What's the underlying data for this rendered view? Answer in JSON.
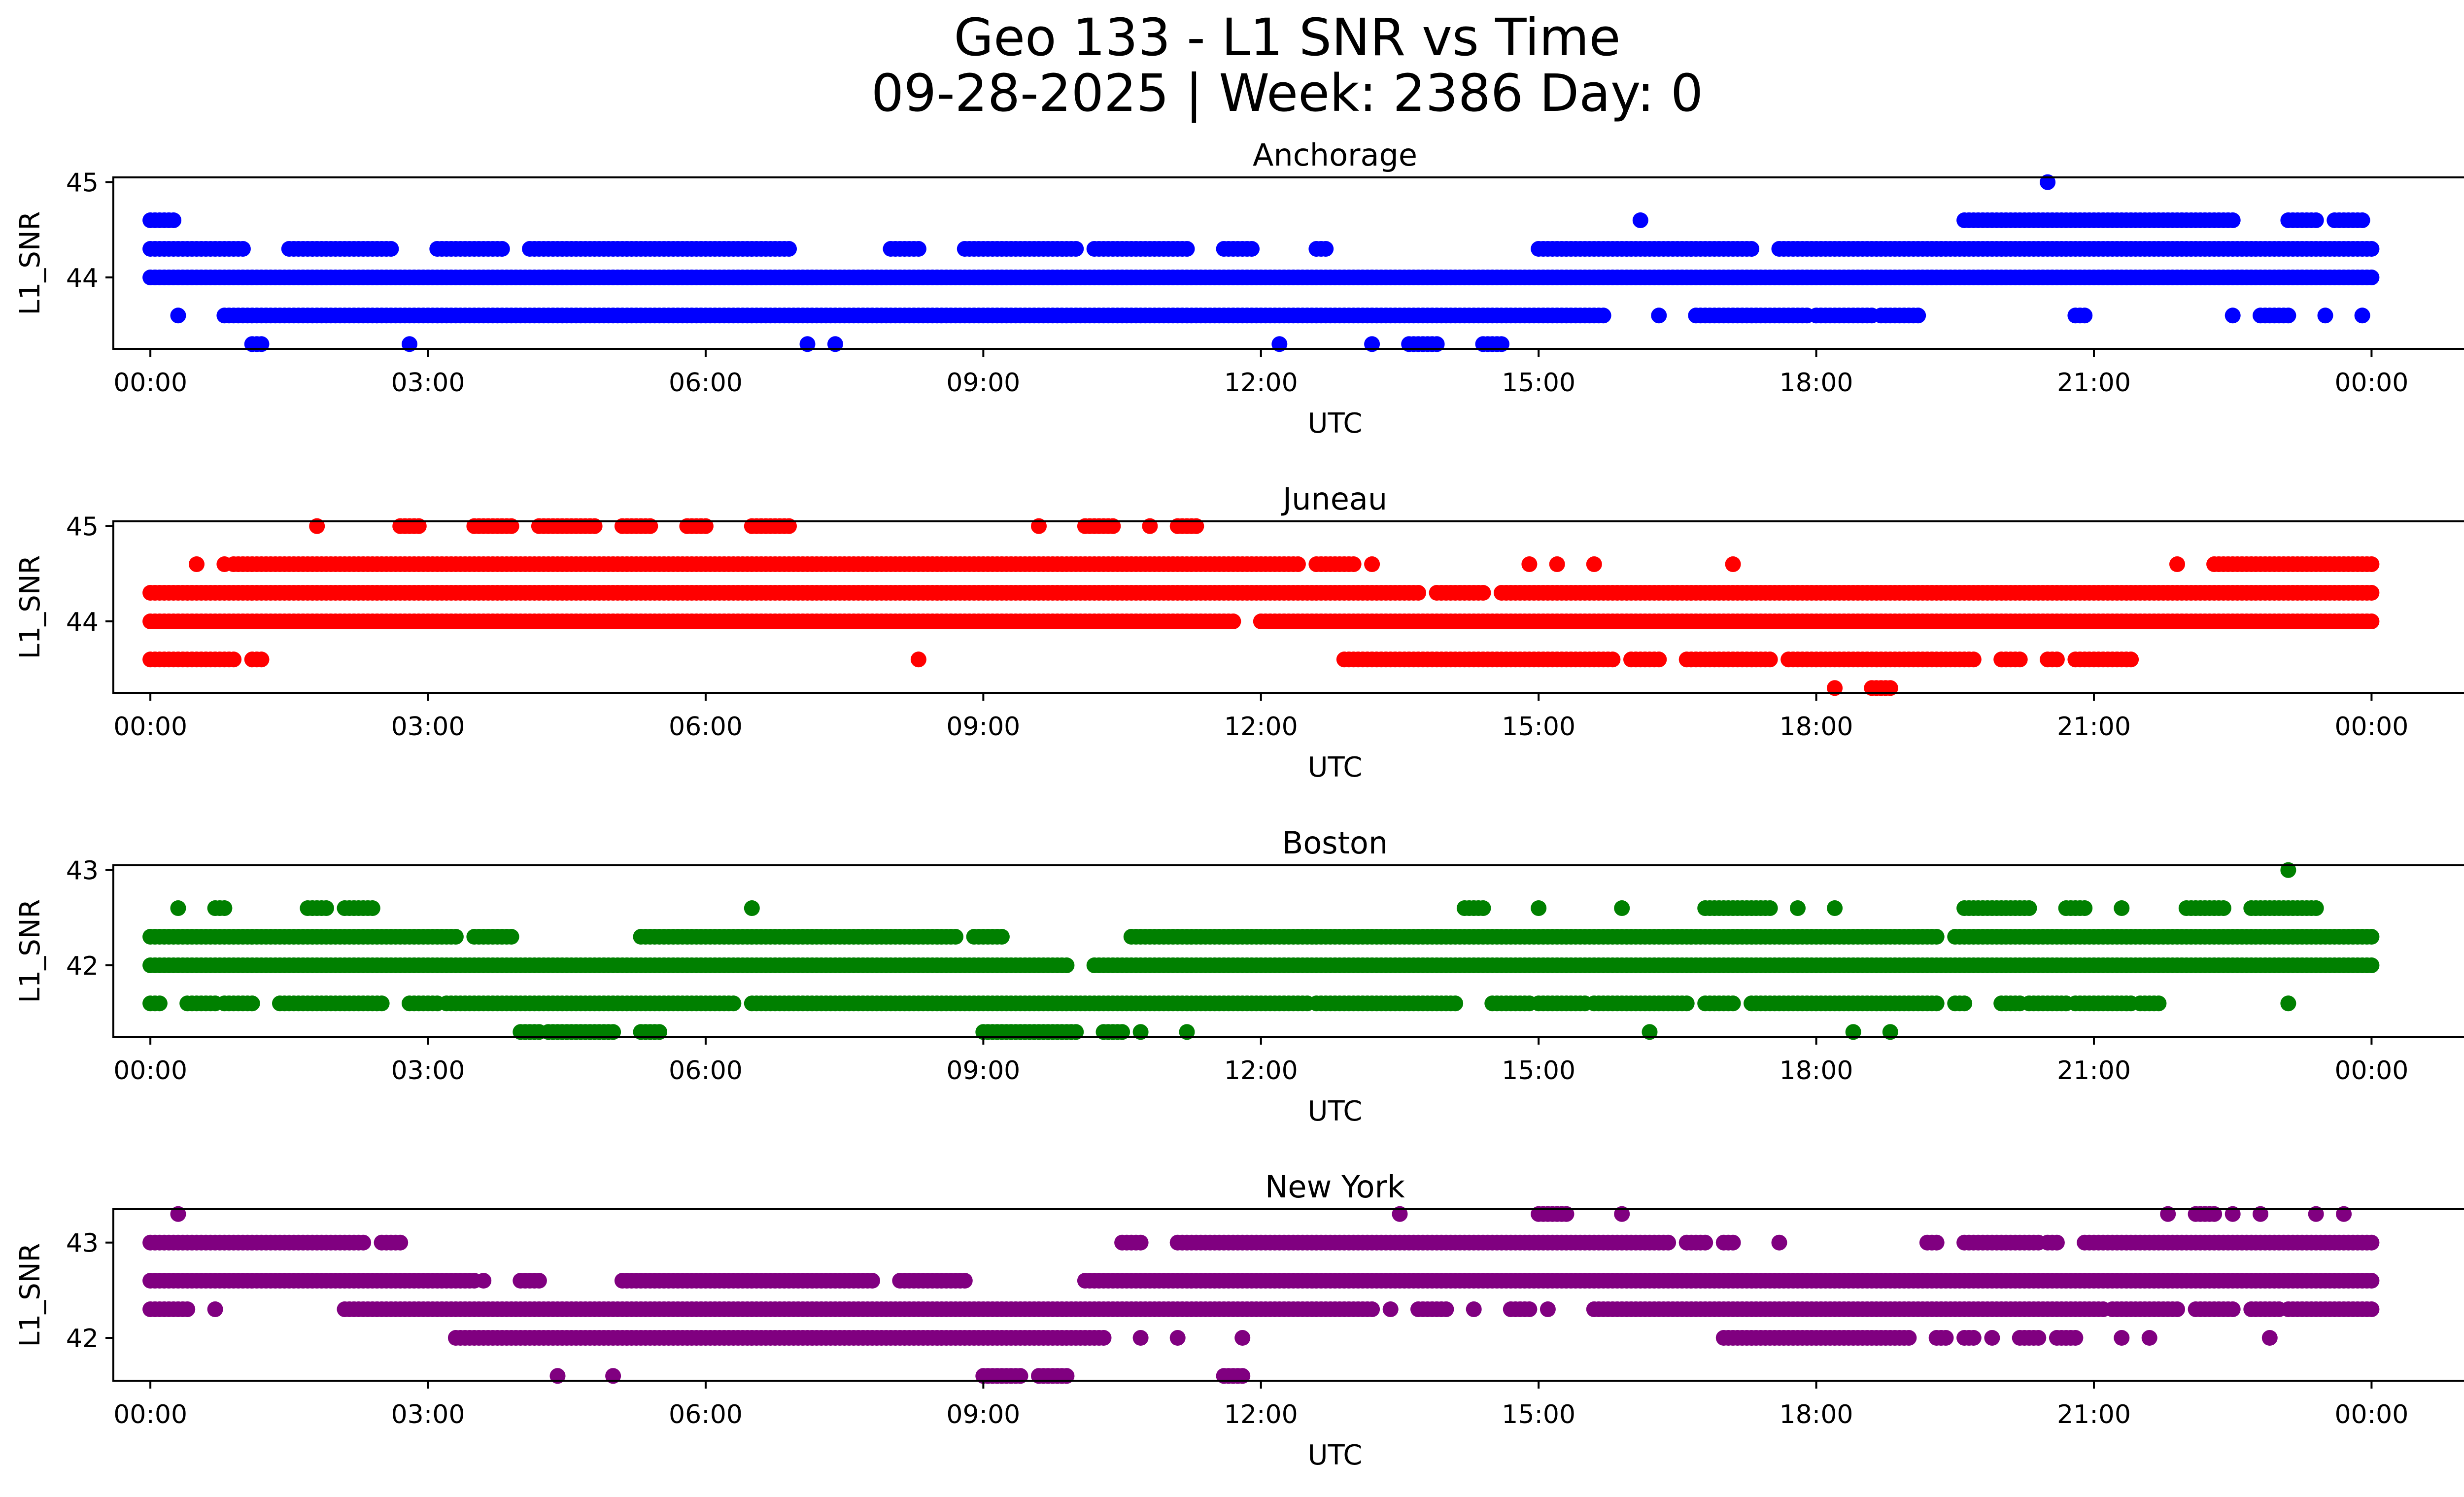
{
  "chart_data": {
    "type": "scatter",
    "title": "Geo 133 - L1 SNR vs Time",
    "subtitle": "09-28-2025 | Week: 2386 Day: 0",
    "xlabel": "UTC",
    "ylabel": "L1_SNR",
    "x_units": "hours UTC",
    "xlim": [
      -0.4,
      26.0
    ],
    "x_ticks": [
      0,
      3,
      6,
      9,
      12,
      15,
      18,
      21,
      24
    ],
    "x_tick_labels": [
      "00:00",
      "03:00",
      "06:00",
      "09:00",
      "12:00",
      "15:00",
      "18:00",
      "21:00",
      "00:00"
    ],
    "panels": [
      {
        "title": "Anchorage",
        "color": "#0000ff",
        "ylim": [
          43.25,
          45.05
        ],
        "y_ticks": [
          44,
          45
        ],
        "levels": [
          {
            "y": 44.0,
            "ranges": [
              [
                0.0,
                24.0
              ]
            ]
          },
          {
            "y": 44.3,
            "ranges": [
              [
                0.0,
                1.0
              ],
              [
                1.5,
                2.6
              ],
              [
                3.1,
                3.8
              ],
              [
                4.1,
                6.9
              ],
              [
                8.0,
                8.3
              ],
              [
                8.8,
                10.0
              ],
              [
                10.2,
                11.2
              ],
              [
                11.6,
                11.9
              ],
              [
                12.6,
                12.7
              ],
              [
                15.0,
                17.3
              ],
              [
                17.6,
                24.0
              ]
            ]
          },
          {
            "y": 44.6,
            "ranges": [
              [
                0.0,
                0.25
              ],
              [
                16.1,
                16.1
              ],
              [
                19.6,
                22.5
              ],
              [
                23.1,
                23.4
              ],
              [
                23.6,
                23.9
              ]
            ]
          },
          {
            "y": 45.0,
            "ranges": [
              [
                20.5,
                20.5
              ]
            ]
          },
          {
            "y": 43.6,
            "ranges": [
              [
                0.3,
                0.3
              ],
              [
                0.8,
                15.7
              ],
              [
                16.3,
                16.3
              ],
              [
                16.7,
                17.9
              ],
              [
                18.0,
                18.6
              ],
              [
                18.7,
                19.1
              ],
              [
                20.8,
                20.9
              ],
              [
                22.5,
                22.5
              ],
              [
                22.8,
                23.1
              ],
              [
                23.5,
                23.5
              ],
              [
                23.9,
                23.9
              ]
            ]
          },
          {
            "y": 43.3,
            "ranges": [
              [
                1.1,
                1.2
              ],
              [
                2.8,
                2.8
              ],
              [
                7.1,
                7.1
              ],
              [
                7.4,
                7.4
              ],
              [
                12.2,
                12.2
              ],
              [
                13.2,
                13.2
              ],
              [
                13.6,
                13.9
              ],
              [
                14.4,
                14.6
              ]
            ]
          }
        ]
      },
      {
        "title": "Juneau",
        "color": "#ff0000",
        "ylim": [
          43.25,
          45.05
        ],
        "y_ticks": [
          44,
          45
        ],
        "levels": [
          {
            "y": 44.0,
            "ranges": [
              [
                0.0,
                11.7
              ],
              [
                12.0,
                24.0
              ]
            ]
          },
          {
            "y": 44.3,
            "ranges": [
              [
                0.0,
                13.7
              ],
              [
                13.9,
                14.4
              ],
              [
                14.6,
                24.0
              ]
            ]
          },
          {
            "y": 44.6,
            "ranges": [
              [
                0.5,
                0.5
              ],
              [
                0.8,
                0.8
              ],
              [
                0.9,
                12.4
              ],
              [
                12.6,
                13.0
              ],
              [
                13.2,
                13.2
              ],
              [
                14.9,
                14.9
              ],
              [
                15.2,
                15.2
              ],
              [
                15.6,
                15.6
              ],
              [
                17.1,
                17.1
              ],
              [
                21.9,
                21.9
              ],
              [
                22.3,
                24.0
              ]
            ]
          },
          {
            "y": 45.0,
            "ranges": [
              [
                1.8,
                1.8
              ],
              [
                2.7,
                2.9
              ],
              [
                3.5,
                3.9
              ],
              [
                4.2,
                4.8
              ],
              [
                5.1,
                5.4
              ],
              [
                5.8,
                6.0
              ],
              [
                6.5,
                6.9
              ],
              [
                9.6,
                9.6
              ],
              [
                10.1,
                10.4
              ],
              [
                10.8,
                10.8
              ],
              [
                11.1,
                11.3
              ]
            ]
          },
          {
            "y": 43.6,
            "ranges": [
              [
                0.0,
                0.9
              ],
              [
                1.1,
                1.2
              ],
              [
                8.3,
                8.3
              ],
              [
                12.9,
                15.8
              ],
              [
                16.0,
                16.3
              ],
              [
                16.6,
                17.5
              ],
              [
                17.7,
                19.7
              ],
              [
                20.0,
                20.2
              ],
              [
                20.5,
                20.6
              ],
              [
                20.8,
                21.4
              ]
            ]
          },
          {
            "y": 43.3,
            "ranges": [
              [
                18.2,
                18.2
              ],
              [
                18.6,
                18.8
              ]
            ]
          }
        ]
      },
      {
        "title": "Boston",
        "color": "#008000",
        "ylim": [
          41.25,
          43.05
        ],
        "y_ticks": [
          42,
          43
        ],
        "levels": [
          {
            "y": 42.0,
            "ranges": [
              [
                0.0,
                9.9
              ],
              [
                10.2,
                24.0
              ]
            ]
          },
          {
            "y": 42.3,
            "ranges": [
              [
                0.0,
                3.3
              ],
              [
                3.5,
                3.9
              ],
              [
                5.3,
                8.7
              ],
              [
                8.9,
                9.2
              ],
              [
                10.6,
                19.3
              ],
              [
                19.5,
                24.0
              ]
            ]
          },
          {
            "y": 42.6,
            "ranges": [
              [
                0.3,
                0.3
              ],
              [
                0.7,
                0.8
              ],
              [
                1.7,
                1.9
              ],
              [
                2.1,
                2.4
              ],
              [
                6.5,
                6.5
              ],
              [
                14.2,
                14.4
              ],
              [
                15.0,
                15.0
              ],
              [
                15.9,
                15.9
              ],
              [
                16.8,
                17.5
              ],
              [
                17.8,
                17.8
              ],
              [
                18.2,
                18.2
              ],
              [
                19.6,
                20.3
              ],
              [
                20.7,
                20.9
              ],
              [
                21.3,
                21.3
              ],
              [
                22.0,
                22.4
              ],
              [
                22.7,
                23.4
              ]
            ]
          },
          {
            "y": 43.0,
            "ranges": [
              [
                23.1,
                23.1
              ]
            ]
          },
          {
            "y": 41.6,
            "ranges": [
              [
                0.0,
                0.1
              ],
              [
                0.4,
                0.7
              ],
              [
                0.8,
                1.1
              ],
              [
                1.4,
                2.5
              ],
              [
                2.8,
                3.1
              ],
              [
                3.2,
                6.3
              ],
              [
                6.5,
                12.5
              ],
              [
                12.6,
                14.1
              ],
              [
                14.5,
                14.9
              ],
              [
                15.0,
                15.5
              ],
              [
                15.6,
                16.6
              ],
              [
                16.8,
                17.1
              ],
              [
                17.3,
                19.3
              ],
              [
                19.5,
                19.6
              ],
              [
                20.0,
                20.2
              ],
              [
                20.3,
                20.7
              ],
              [
                20.8,
                21.4
              ],
              [
                21.5,
                21.7
              ],
              [
                23.1,
                23.1
              ]
            ]
          },
          {
            "y": 41.3,
            "ranges": [
              [
                4.0,
                4.2
              ],
              [
                4.3,
                5.0
              ],
              [
                5.3,
                5.5
              ],
              [
                9.0,
                10.0
              ],
              [
                10.3,
                10.5
              ],
              [
                10.7,
                10.7
              ],
              [
                11.2,
                11.2
              ],
              [
                16.2,
                16.2
              ],
              [
                18.4,
                18.4
              ],
              [
                18.8,
                18.8
              ]
            ]
          }
        ]
      },
      {
        "title": "New York",
        "color": "#800080",
        "ylim": [
          41.55,
          43.35
        ],
        "y_ticks": [
          42,
          43
        ],
        "levels": [
          {
            "y": 42.6,
            "ranges": [
              [
                0.0,
                3.5
              ],
              [
                3.6,
                3.6
              ],
              [
                4.0,
                4.2
              ],
              [
                5.1,
                7.8
              ],
              [
                8.1,
                8.8
              ],
              [
                10.1,
                24.0
              ]
            ]
          },
          {
            "y": 42.3,
            "ranges": [
              [
                0.0,
                0.4
              ],
              [
                0.7,
                0.7
              ],
              [
                2.1,
                13.2
              ],
              [
                13.4,
                13.4
              ],
              [
                13.7,
                14.0
              ],
              [
                14.3,
                14.3
              ],
              [
                14.7,
                14.9
              ],
              [
                15.1,
                15.1
              ],
              [
                15.6,
                21.1
              ],
              [
                21.2,
                21.9
              ],
              [
                22.1,
                22.5
              ],
              [
                22.7,
                23.0
              ],
              [
                23.1,
                24.0
              ]
            ]
          },
          {
            "y": 43.0,
            "ranges": [
              [
                0.0,
                2.3
              ],
              [
                2.5,
                2.7
              ],
              [
                10.5,
                10.7
              ],
              [
                11.1,
                16.4
              ],
              [
                16.6,
                16.8
              ],
              [
                17.0,
                17.1
              ],
              [
                17.6,
                17.6
              ],
              [
                19.2,
                19.3
              ],
              [
                19.6,
                20.4
              ],
              [
                20.5,
                20.6
              ],
              [
                20.9,
                24.0
              ]
            ]
          },
          {
            "y": 43.3,
            "ranges": [
              [
                0.3,
                0.3
              ],
              [
                13.5,
                13.5
              ],
              [
                15.0,
                15.3
              ],
              [
                15.9,
                15.9
              ],
              [
                21.8,
                21.8
              ],
              [
                22.1,
                22.3
              ],
              [
                22.5,
                22.5
              ],
              [
                22.8,
                22.8
              ],
              [
                23.4,
                23.4
              ],
              [
                23.7,
                23.7
              ]
            ]
          },
          {
            "y": 42.0,
            "ranges": [
              [
                3.3,
                10.3
              ],
              [
                10.7,
                10.7
              ],
              [
                11.1,
                11.1
              ],
              [
                11.8,
                11.8
              ],
              [
                17.0,
                19.0
              ],
              [
                19.3,
                19.4
              ],
              [
                19.6,
                19.7
              ],
              [
                19.9,
                19.9
              ],
              [
                20.2,
                20.4
              ],
              [
                20.6,
                20.8
              ],
              [
                21.3,
                21.3
              ],
              [
                21.6,
                21.6
              ],
              [
                22.9,
                22.9
              ]
            ]
          },
          {
            "y": 41.6,
            "ranges": [
              [
                4.4,
                4.4
              ],
              [
                5.0,
                5.0
              ],
              [
                9.0,
                9.4
              ],
              [
                9.6,
                9.9
              ],
              [
                11.6,
                11.8
              ]
            ]
          }
        ]
      }
    ]
  }
}
